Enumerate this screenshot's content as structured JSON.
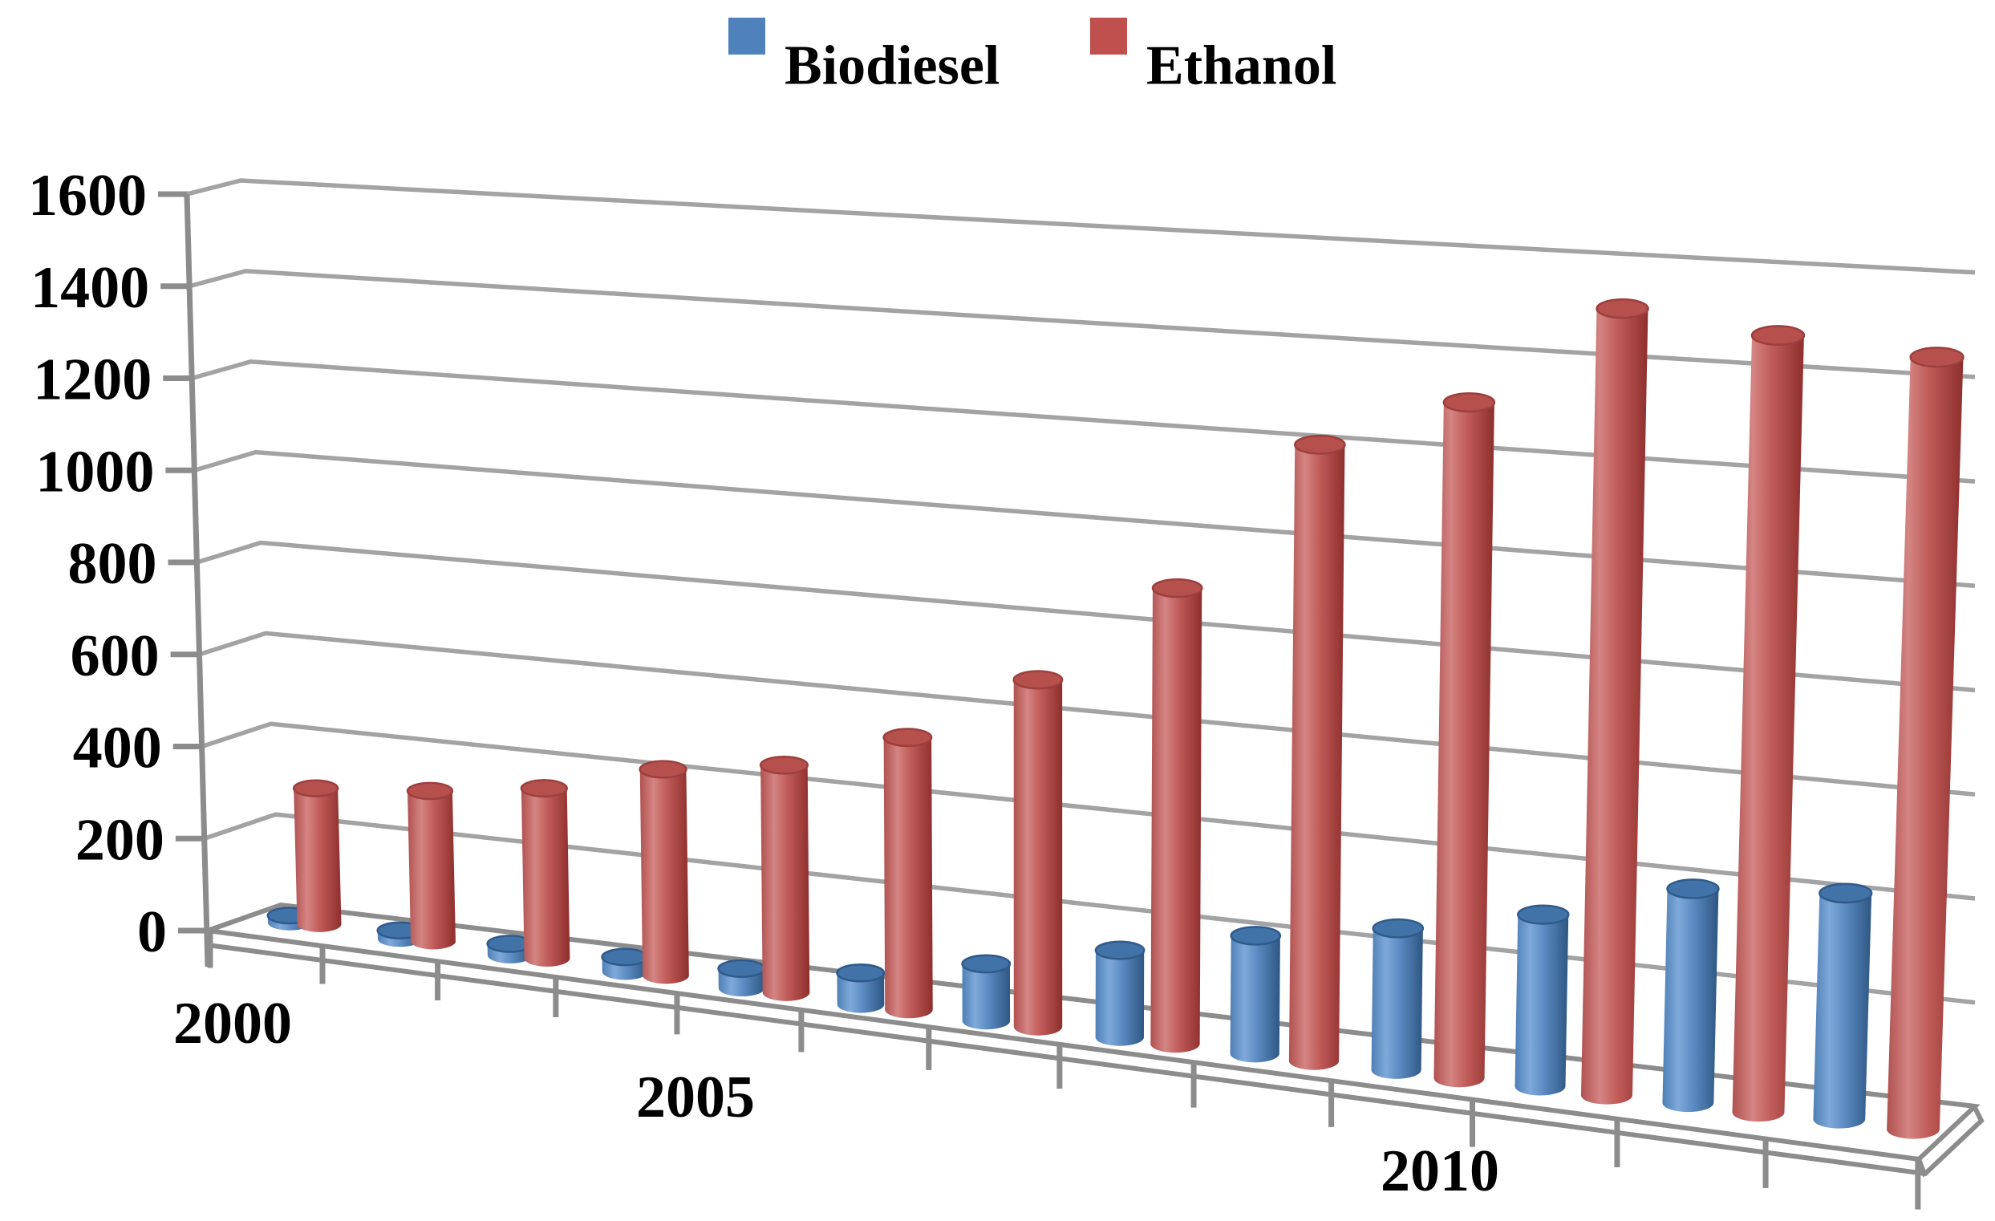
{
  "chart_data": {
    "type": "bar",
    "chart_style": "3d-cylinder-perspective",
    "title": "",
    "xlabel": "",
    "ylabel": "",
    "categories": [
      2000,
      2001,
      2002,
      2003,
      2004,
      2005,
      2006,
      2007,
      2008,
      2009,
      2010,
      2011,
      2012
    ],
    "series": [
      {
        "name": "Biodiesel",
        "color": "#4F81BD",
        "values": [
          15,
          18,
          24,
          30,
          39,
          62,
          110,
          165,
          220,
          260,
          310,
          380,
          395
        ]
      },
      {
        "name": "Ethanol",
        "color": "#C0504D",
        "values": [
          293,
          318,
          353,
          420,
          455,
          535,
          670,
          865,
          1150,
          1240,
          1420,
          1380,
          1350
        ]
      }
    ],
    "ylim": [
      0,
      1600
    ],
    "ytick_step": 200,
    "yticks": [
      0,
      200,
      400,
      600,
      800,
      1000,
      1200,
      1400,
      1600
    ],
    "x_tick_labels_shown": [
      "2000",
      "2005",
      "2010"
    ],
    "legend_position": "top-center",
    "grid": true,
    "background_color": "#FFFFFF",
    "gridline_color": "#A3A3A3",
    "axis_color": "#8C8C8C"
  }
}
